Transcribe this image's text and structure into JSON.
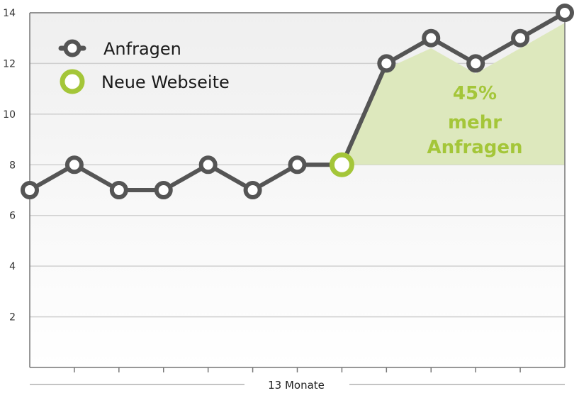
{
  "chart_data": {
    "type": "line",
    "x": [
      1,
      2,
      3,
      4,
      5,
      6,
      7,
      8,
      9,
      10,
      11,
      12,
      13
    ],
    "series": [
      {
        "name": "Anfragen",
        "values": [
          7,
          8,
          7,
          7,
          8,
          7,
          8,
          8,
          12,
          13,
          12,
          13,
          14
        ]
      }
    ],
    "highlight_point": {
      "index": 7,
      "name": "Neue Webseite"
    },
    "shaded_area": {
      "baseline": 8,
      "from_index": 7,
      "to_index": 12,
      "values": [
        8,
        11.8,
        12.6,
        11.6,
        12.6,
        13.6
      ]
    },
    "annotation": [
      "45%",
      "mehr",
      "Anfragen"
    ],
    "xlabel": "13 Monate",
    "ylabel": "",
    "yticks": [
      2,
      4,
      6,
      8,
      10,
      12,
      14
    ],
    "ylim": [
      0,
      14
    ],
    "grid": true,
    "legend_position": "top-left",
    "colors": {
      "line": "#555555",
      "marker_fill": "#ffffff",
      "highlight": "#a4c639",
      "shade": "#dde8bd",
      "grid": "#d0d0d0",
      "bg_top": "#efefef",
      "bg_bottom": "#ffffff",
      "axis": "#777777"
    }
  }
}
